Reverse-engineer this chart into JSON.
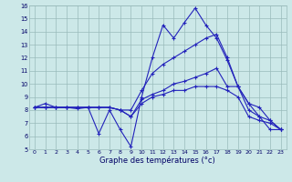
{
  "xlabel": "Graphe des températures (°c)",
  "bg_color": "#cce8e8",
  "line_color": "#2222bb",
  "grid_color": "#99bbbb",
  "xlim": [
    -0.5,
    23.5
  ],
  "ylim": [
    5,
    16
  ],
  "yticks": [
    5,
    6,
    7,
    8,
    9,
    10,
    11,
    12,
    13,
    14,
    15,
    16
  ],
  "xticks": [
    0,
    1,
    2,
    3,
    4,
    5,
    6,
    7,
    8,
    9,
    10,
    11,
    12,
    13,
    14,
    15,
    16,
    17,
    18,
    19,
    20,
    21,
    22,
    23
  ],
  "series": [
    [
      8.2,
      8.5,
      8.2,
      8.2,
      8.1,
      8.2,
      6.2,
      8.0,
      6.5,
      5.2,
      9.0,
      12.0,
      14.5,
      13.5,
      14.7,
      15.8,
      14.5,
      13.5,
      11.8,
      9.8,
      8.5,
      7.5,
      6.5,
      6.5
    ],
    [
      8.2,
      8.2,
      8.2,
      8.2,
      8.2,
      8.2,
      8.2,
      8.2,
      8.0,
      8.0,
      9.5,
      10.8,
      11.5,
      12.0,
      12.5,
      13.0,
      13.5,
      13.8,
      12.0,
      9.8,
      8.0,
      7.5,
      7.2,
      6.5
    ],
    [
      8.2,
      8.2,
      8.2,
      8.2,
      8.2,
      8.2,
      8.2,
      8.2,
      8.0,
      7.5,
      8.8,
      9.2,
      9.5,
      10.0,
      10.2,
      10.5,
      10.8,
      11.2,
      9.8,
      9.8,
      8.5,
      8.2,
      7.2,
      6.5
    ],
    [
      8.2,
      8.2,
      8.2,
      8.2,
      8.2,
      8.2,
      8.2,
      8.2,
      8.0,
      7.5,
      8.5,
      9.0,
      9.2,
      9.5,
      9.5,
      9.8,
      9.8,
      9.8,
      9.5,
      9.0,
      7.5,
      7.2,
      7.0,
      6.5
    ]
  ]
}
